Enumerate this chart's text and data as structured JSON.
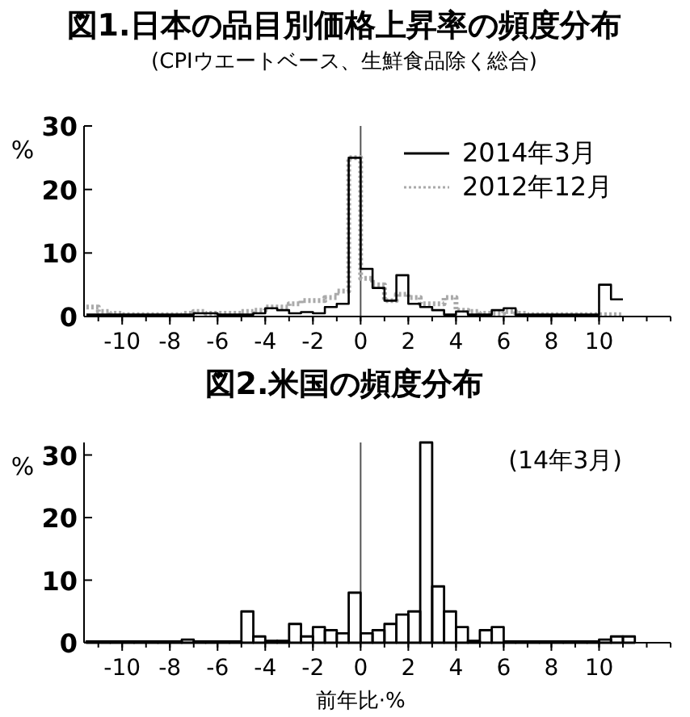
{
  "chart_data": [
    {
      "type": "step",
      "title": "図1.日本の品目別価格上昇率の頻度分布",
      "subtitle": "(CPIウエートベース、生鮮食品除く総合)",
      "ylabel": "%",
      "x": [
        -11.5,
        -11,
        -10.5,
        -10,
        -9.5,
        -9,
        -8.5,
        -8,
        -7.5,
        -7,
        -6.5,
        -6,
        -5.5,
        -5,
        -4.5,
        -4,
        -3.5,
        -3,
        -2.5,
        -2,
        -1.5,
        -1,
        -0.5,
        0,
        0.5,
        1,
        1.5,
        2,
        2.5,
        3,
        3.5,
        4,
        4.5,
        5,
        5.5,
        6,
        6.5,
        7,
        7.5,
        8,
        8.5,
        9,
        9.5,
        10,
        10.5,
        11
      ],
      "series": [
        {
          "name": "2012年12月",
          "color": "#aaaaaa",
          "line_style": "dotted",
          "values": [
            1.5,
            0.8,
            0.5,
            0.3,
            0.3,
            0.3,
            0.3,
            0.3,
            0.5,
            0.8,
            0.5,
            0.5,
            0.5,
            0.8,
            1,
            1.5,
            1.5,
            2,
            2.5,
            2.5,
            3,
            4,
            25,
            6,
            5,
            2.5,
            3.5,
            3,
            2,
            2,
            3,
            1,
            0.8,
            0.5,
            0.5,
            0.8,
            0.5,
            0.3,
            0.3,
            0.3,
            0.3,
            0.3,
            0.3,
            0.3,
            0.3,
            0.3
          ]
        },
        {
          "name": "2014年3月",
          "color": "#000000",
          "values": [
            0.3,
            0.3,
            0.3,
            0.3,
            0.3,
            0.3,
            0.3,
            0.3,
            0.3,
            0.5,
            0.5,
            0.3,
            0.3,
            0.3,
            0.5,
            1.3,
            1,
            0.5,
            0.7,
            0.5,
            1.5,
            2,
            25,
            7.5,
            4.5,
            2.5,
            6.5,
            2,
            1.5,
            1,
            0.3,
            0.8,
            0.3,
            0.3,
            1,
            1.3,
            0.3,
            0.3,
            0.3,
            0.3,
            0.3,
            0.3,
            0.3,
            5,
            2.7,
            2.7
          ]
        }
      ],
      "xlim": [
        -11.6,
        13
      ],
      "xticks": [
        -10,
        -8,
        -6,
        -4,
        -2,
        0,
        2,
        4,
        6,
        8,
        10
      ],
      "ylim": [
        0,
        30
      ],
      "yticks": [
        0,
        10,
        20,
        30
      ],
      "ref_lines": [
        {
          "axis": "x",
          "value": 0
        }
      ],
      "legend": "top right",
      "grid": false
    },
    {
      "type": "histogram",
      "title": "図2.米国の頻度分布",
      "xlabel": "前年比·%",
      "ylabel": "%",
      "annotations": [
        "(14年3月)"
      ],
      "bins": [
        -11.5,
        -11,
        -10.5,
        -10,
        -9.5,
        -9,
        -8.5,
        -8,
        -7.5,
        -7,
        -6.5,
        -6,
        -5.5,
        -5,
        -4.5,
        -4,
        -3.5,
        -3,
        -2.5,
        -2,
        -1.5,
        -1,
        -0.5,
        0,
        0.5,
        1,
        1.5,
        2,
        2.5,
        3,
        3.5,
        4,
        4.5,
        5,
        5.5,
        6,
        6.5,
        7,
        7.5,
        8,
        8.5,
        9,
        9.5,
        10,
        10.5,
        11,
        11.5
      ],
      "values": [
        0.2,
        0.2,
        0.2,
        0.2,
        0.2,
        0.2,
        0.2,
        0.2,
        0.5,
        0.2,
        0.2,
        0.2,
        0.2,
        5,
        1,
        0.3,
        0.3,
        3,
        1,
        2.5,
        2,
        1.5,
        8,
        1.5,
        2,
        3,
        4.5,
        5,
        32,
        9,
        5,
        2.5,
        0.3,
        2,
        2.5,
        0.2,
        0.2,
        0.2,
        0.2,
        0.2,
        0.2,
        0.2,
        0.2,
        0.5,
        1,
        1
      ],
      "color": "#000000",
      "xlim": [
        -11.6,
        13
      ],
      "xticks": [
        -10,
        -8,
        -6,
        -4,
        -2,
        0,
        2,
        4,
        6,
        8,
        10
      ],
      "ylim": [
        0,
        32
      ],
      "yticks": [
        0,
        10,
        20,
        30
      ],
      "ref_lines": [
        {
          "axis": "x",
          "value": 0
        }
      ],
      "grid": false
    }
  ]
}
